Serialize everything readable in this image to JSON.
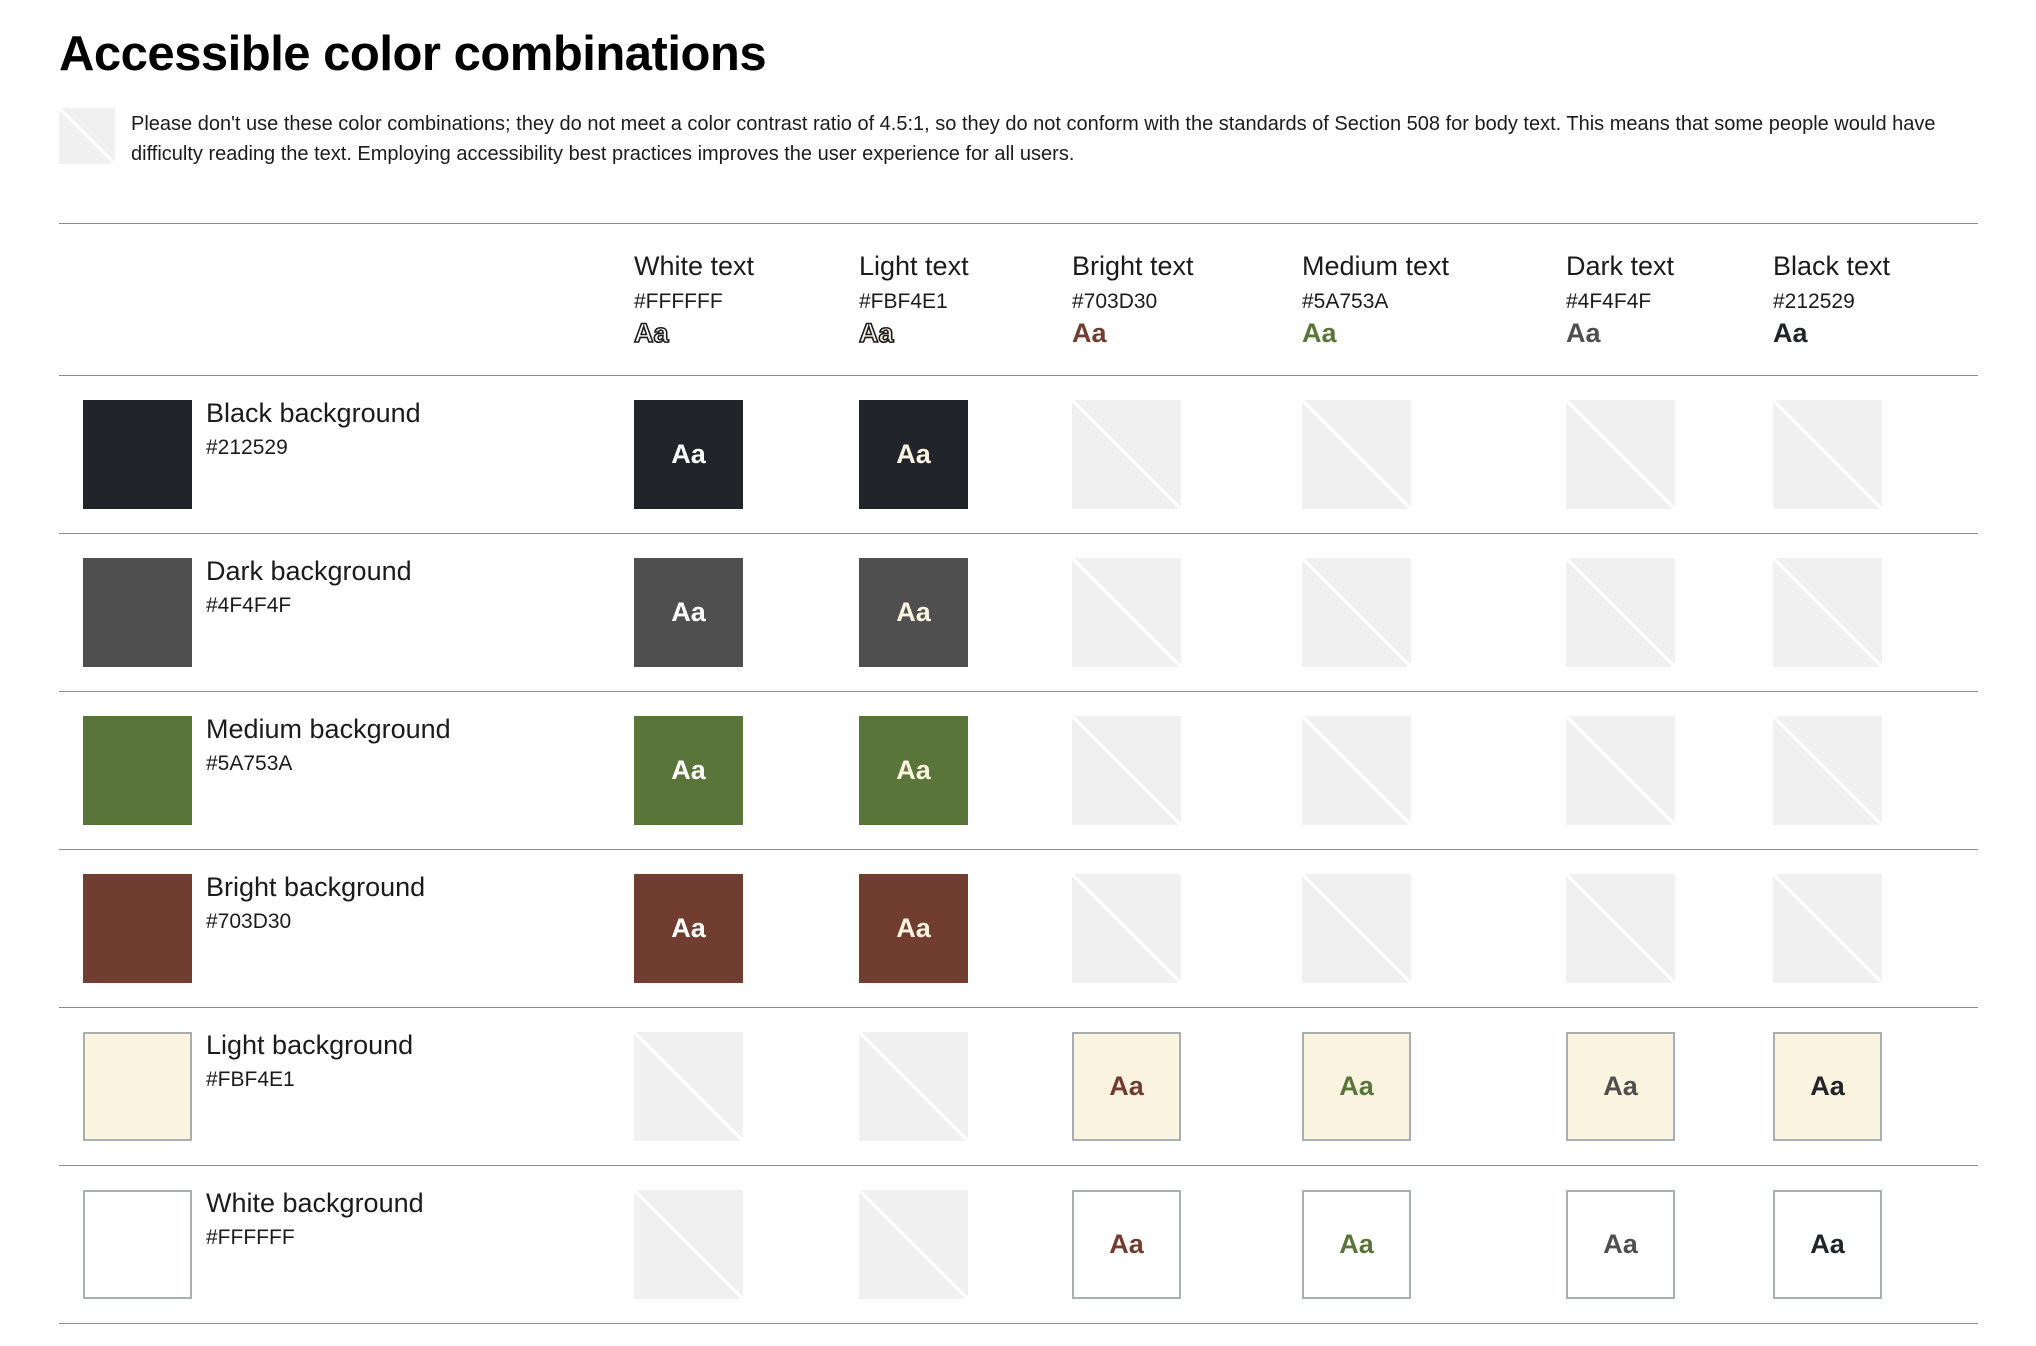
{
  "page": {
    "title": "Accessible color combinations",
    "notice": "Please don't use these color combinations; they do not meet a color contrast ratio of 4.5:1, so they do not conform with the standards of Section 508 for body text. This means that some people would have difficulty reading the text. Employing accessibility best practices improves the user experience for all users.",
    "sample_text": "Aa"
  },
  "text_colors": [
    {
      "name": "White text",
      "hex": "#FFFFFF",
      "color": "#FFFFFF",
      "outlined": true
    },
    {
      "name": "Light text",
      "hex": "#FBF4E1",
      "color": "#FBF4E1",
      "outlined": true
    },
    {
      "name": "Bright text",
      "hex": "#703D30",
      "color": "#703D30",
      "outlined": false
    },
    {
      "name": "Medium text",
      "hex": "#5A753A",
      "color": "#5A753A",
      "outlined": false
    },
    {
      "name": "Dark text",
      "hex": "#4F4F4F",
      "color": "#4F4F4F",
      "outlined": false
    },
    {
      "name": "Black text",
      "hex": "#212529",
      "color": "#212529",
      "outlined": false
    }
  ],
  "backgrounds": [
    {
      "name": "Black background",
      "hex": "#212529",
      "color": "#212529",
      "bordered": false,
      "passes": [
        true,
        true,
        false,
        false,
        false,
        false
      ]
    },
    {
      "name": "Dark background",
      "hex": "#4F4F4F",
      "color": "#4F4F4F",
      "bordered": false,
      "passes": [
        true,
        true,
        false,
        false,
        false,
        false
      ]
    },
    {
      "name": "Medium background",
      "hex": "#5A753A",
      "color": "#5A753A",
      "bordered": false,
      "passes": [
        true,
        true,
        false,
        false,
        false,
        false
      ]
    },
    {
      "name": "Bright background",
      "hex": "#703D30",
      "color": "#703D30",
      "bordered": false,
      "passes": [
        true,
        true,
        false,
        false,
        false,
        false
      ]
    },
    {
      "name": "Light background",
      "hex": "#FBF4E1",
      "color": "#FBF4E1",
      "bordered": true,
      "passes": [
        false,
        false,
        true,
        true,
        true,
        true
      ]
    },
    {
      "name": "White background",
      "hex": "#FFFFFF",
      "color": "#FFFFFF",
      "bordered": true,
      "passes": [
        false,
        false,
        true,
        true,
        true,
        true
      ]
    }
  ]
}
